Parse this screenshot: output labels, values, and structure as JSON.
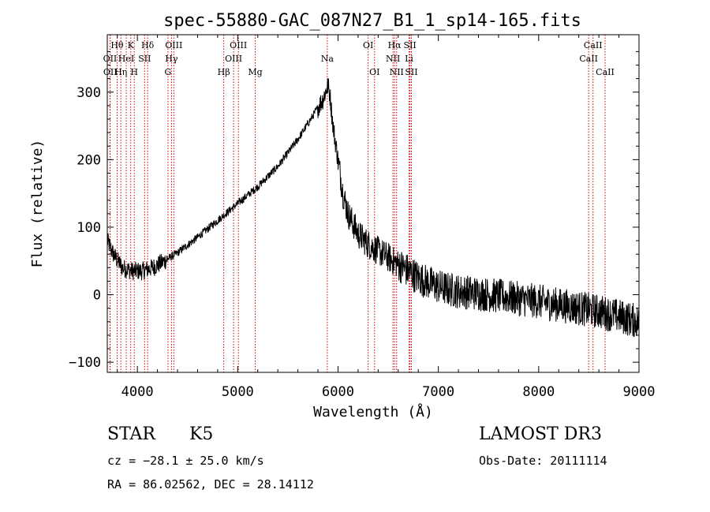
{
  "chart_data": {
    "type": "line",
    "title": "spec-55880-GAC_087N27_B1_1_sp14-165.fits",
    "xlabel": "Wavelength (Å)",
    "ylabel": "Flux (relative)",
    "xlim": [
      3700,
      9000
    ],
    "ylim": [
      -115,
      385
    ],
    "xticks": [
      4000,
      5000,
      6000,
      7000,
      8000,
      9000
    ],
    "yticks": [
      -100,
      0,
      100,
      200,
      300
    ],
    "line_color": "#000000",
    "marker_color": "#cc0000",
    "lines": [
      {
        "name": "Hθ",
        "wl": 3798,
        "row": 0
      },
      {
        "name": "OII",
        "wl": 3727,
        "row": 1
      },
      {
        "name": "OII",
        "wl": 3729,
        "row": 2
      },
      {
        "name": "K",
        "wl": 3934,
        "row": 0
      },
      {
        "name": "Hη",
        "wl": 3835,
        "row": 2
      },
      {
        "name": "HeI",
        "wl": 3889,
        "row": 1
      },
      {
        "name": "H",
        "wl": 3969,
        "row": 2
      },
      {
        "name": "SII",
        "wl": 4072,
        "row": 1
      },
      {
        "name": "Hδ",
        "wl": 4102,
        "row": 0
      },
      {
        "name": "OIII",
        "wl": 4363,
        "row": 0
      },
      {
        "name": "Hγ",
        "wl": 4340,
        "row": 1
      },
      {
        "name": "G",
        "wl": 4305,
        "row": 2
      },
      {
        "name": "Hβ",
        "wl": 4861,
        "row": 2
      },
      {
        "name": "OIII",
        "wl": 4959,
        "row": 1
      },
      {
        "name": "OIII",
        "wl": 5007,
        "row": 0
      },
      {
        "name": "Mg",
        "wl": 5175,
        "row": 2
      },
      {
        "name": "Na",
        "wl": 5893,
        "row": 1
      },
      {
        "name": "OI",
        "wl": 6300,
        "row": 0
      },
      {
        "name": "OI",
        "wl": 6364,
        "row": 2
      },
      {
        "name": "NII",
        "wl": 6548,
        "row": 1
      },
      {
        "name": "Hα",
        "wl": 6563,
        "row": 0
      },
      {
        "name": "NII",
        "wl": 6584,
        "row": 2
      },
      {
        "name": "SII",
        "wl": 6717,
        "row": 0
      },
      {
        "name": "Li",
        "wl": 6708,
        "row": 1
      },
      {
        "name": "SII",
        "wl": 6731,
        "row": 2
      },
      {
        "name": "CaII",
        "wl": 8498,
        "row": 1
      },
      {
        "name": "CaII",
        "wl": 8542,
        "row": 0
      },
      {
        "name": "CaII",
        "wl": 8662,
        "row": 2
      }
    ],
    "spectrum_trend": [
      [
        3700,
        80
      ],
      [
        3760,
        60
      ],
      [
        3850,
        40
      ],
      [
        3950,
        35
      ],
      [
        4050,
        35
      ],
      [
        4150,
        40
      ],
      [
        4250,
        48
      ],
      [
        4400,
        62
      ],
      [
        4600,
        85
      ],
      [
        4800,
        110
      ],
      [
        5000,
        135
      ],
      [
        5200,
        160
      ],
      [
        5400,
        190
      ],
      [
        5600,
        230
      ],
      [
        5750,
        265
      ],
      [
        5850,
        290
      ],
      [
        5900,
        310
      ],
      [
        5920,
        295
      ],
      [
        5950,
        250
      ],
      [
        6000,
        200
      ],
      [
        6050,
        150
      ],
      [
        6100,
        120
      ],
      [
        6200,
        90
      ],
      [
        6300,
        75
      ],
      [
        6400,
        65
      ],
      [
        6500,
        55
      ],
      [
        6600,
        45
      ],
      [
        6700,
        35
      ],
      [
        6800,
        25
      ],
      [
        6900,
        18
      ],
      [
        7000,
        12
      ],
      [
        7100,
        8
      ],
      [
        7200,
        5
      ],
      [
        7400,
        2
      ],
      [
        7600,
        -2
      ],
      [
        7800,
        -6
      ],
      [
        8000,
        -10
      ],
      [
        8200,
        -15
      ],
      [
        8400,
        -20
      ],
      [
        8600,
        -25
      ],
      [
        8800,
        -32
      ],
      [
        9000,
        -40
      ]
    ]
  },
  "info": {
    "object_type": "STAR",
    "subclass": "K5",
    "survey": "LAMOST DR3",
    "redshift": "cz = −28.1 ± 25.0 km/s",
    "obs_date": "Obs-Date: 20111114",
    "coords": "RA =  86.02562, DEC =  28.14112"
  }
}
